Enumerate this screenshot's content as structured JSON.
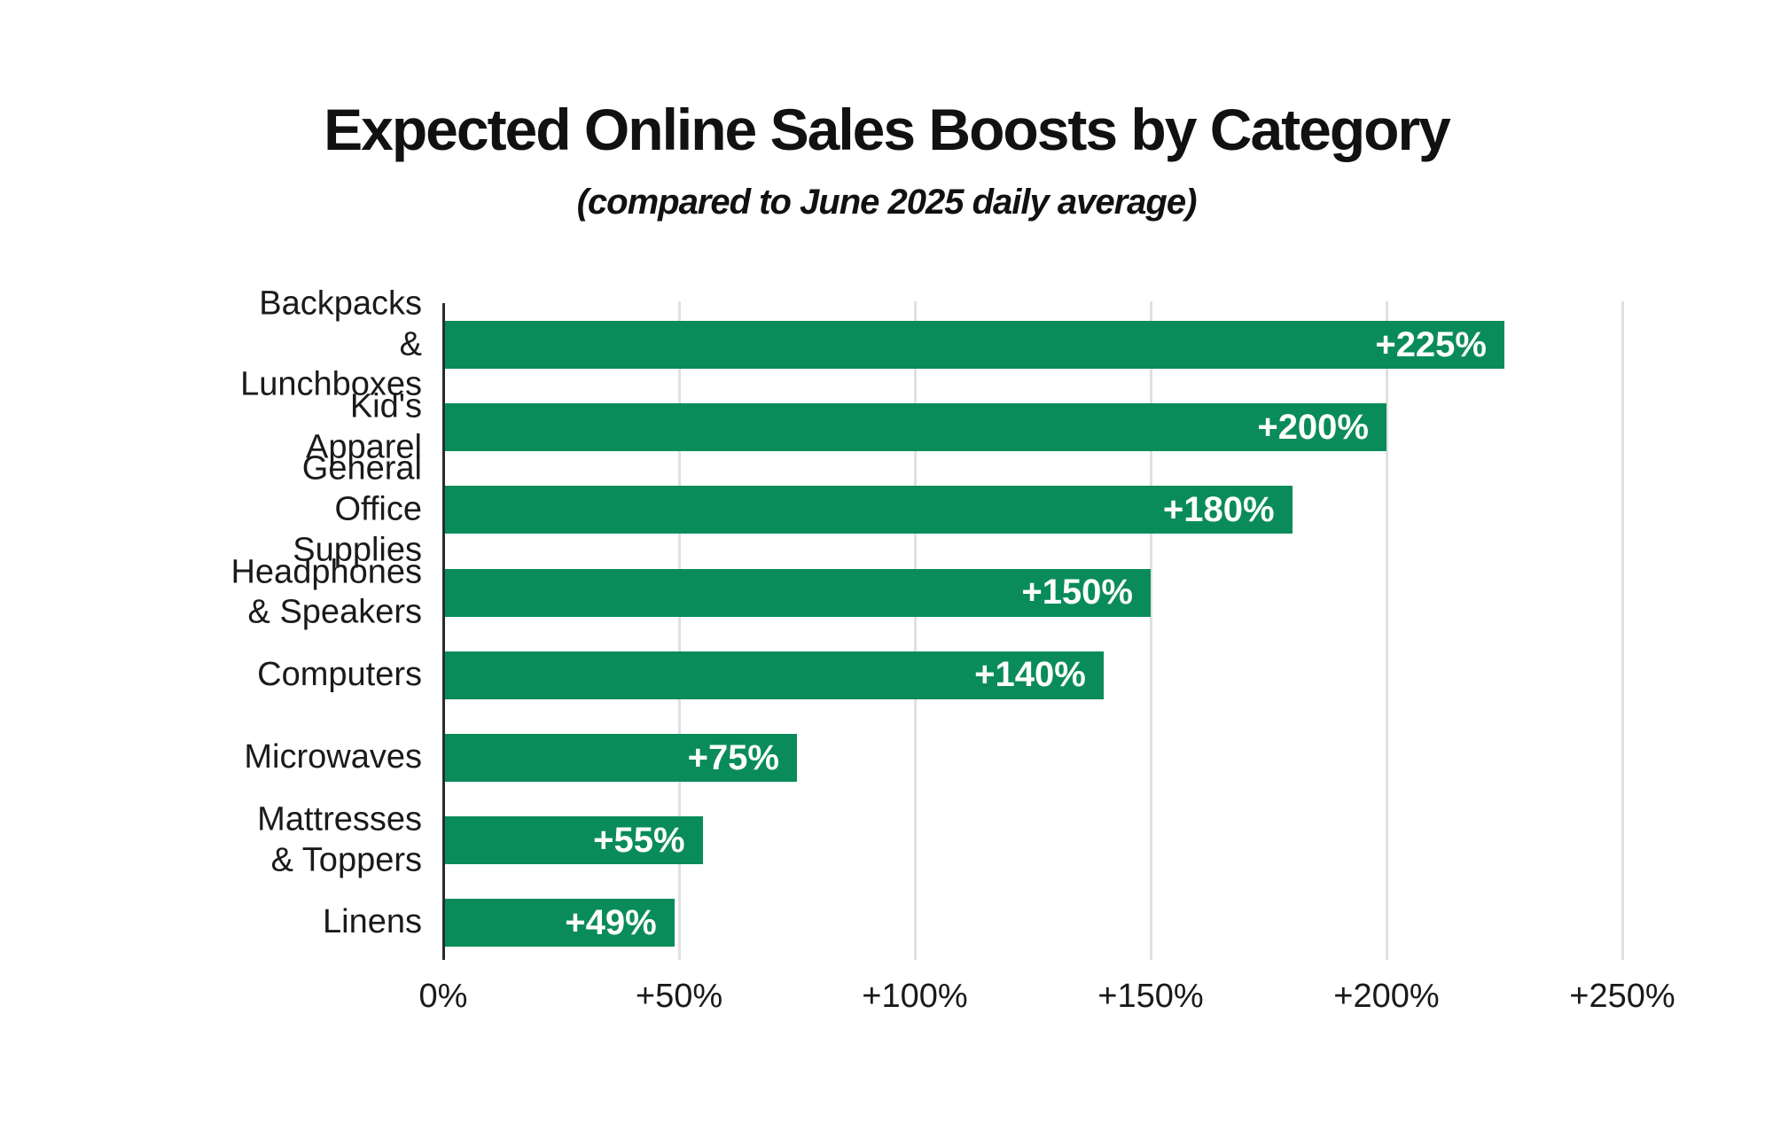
{
  "title": "Expected Online Sales Boosts by Category",
  "subtitle": "(compared to June 2025 daily average)",
  "colors": {
    "bar": "#0A8C5A",
    "bar_value_text": "#FFFFFF",
    "gridline": "#E0E0E0",
    "axis": "#2B2B2B",
    "text": "#1A1A1A",
    "background": "#FFFFFF"
  },
  "chart_data": {
    "type": "bar",
    "orientation": "horizontal",
    "title": "Expected Online Sales Boosts by Category",
    "subtitle": "(compared to June 2025 daily average)",
    "categories": [
      "Backpacks\n& Lunchboxes",
      "Kid's Apparel",
      "General Office Supplies",
      "Headphones\n& Speakers",
      "Computers",
      "Microwaves",
      "Mattresses & Toppers",
      "Linens"
    ],
    "values": [
      225,
      200,
      180,
      150,
      140,
      75,
      55,
      49
    ],
    "value_labels": [
      "+225%",
      "+200%",
      "+180%",
      "+150%",
      "+140%",
      "+75%",
      "+55%",
      "+49%"
    ],
    "xlim": [
      0,
      250
    ],
    "x_ticks": [
      0,
      50,
      100,
      150,
      200,
      250
    ],
    "x_tick_labels": [
      "0%",
      "+50%",
      "+100%",
      "+150%",
      "+200%",
      "+250%"
    ],
    "grid": true,
    "legend": false,
    "value_labels_position": "inside-end",
    "xlabel": "",
    "ylabel": ""
  }
}
